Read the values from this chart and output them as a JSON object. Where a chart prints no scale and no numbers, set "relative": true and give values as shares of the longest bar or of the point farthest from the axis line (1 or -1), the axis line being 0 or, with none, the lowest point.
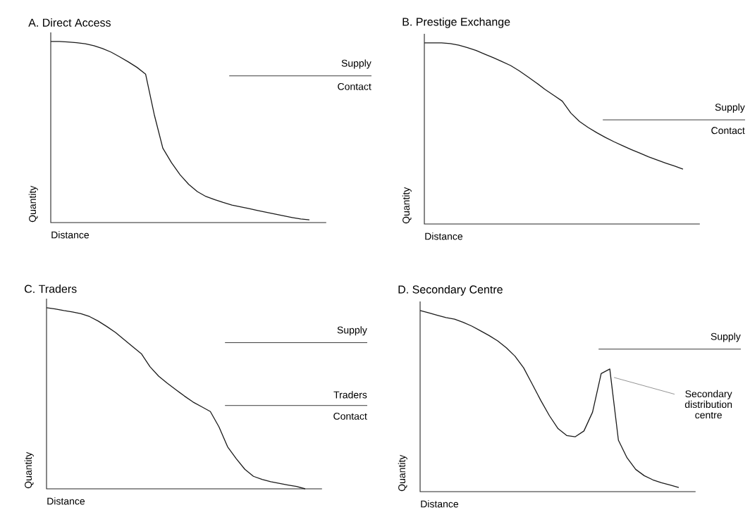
{
  "chart_data": [
    {
      "type": "line",
      "relative": true,
      "title": "A. Direct Access",
      "xlabel": "Distance",
      "ylabel": "Quantity",
      "color": "#1a1a1a",
      "categories": [
        null,
        null,
        null,
        null,
        null,
        null,
        null,
        null,
        null,
        null,
        null,
        null,
        null,
        null,
        null,
        null,
        null,
        null,
        null,
        null,
        null,
        null,
        null,
        null,
        null,
        null,
        null,
        null,
        null,
        null,
        null
      ],
      "values": [
        1.0,
        1.0,
        0.997,
        0.993,
        0.987,
        0.977,
        0.961,
        0.941,
        0.915,
        0.887,
        0.857,
        0.82,
        0.597,
        0.411,
        0.331,
        0.264,
        0.211,
        0.171,
        0.144,
        0.127,
        0.111,
        0.097,
        0.087,
        0.077,
        0.067,
        0.057,
        0.047,
        0.037,
        0.028,
        0.02,
        0.015
      ],
      "ref_lines": [
        {
          "axis": "y",
          "value": 0.81,
          "label": "Supply"
        }
      ],
      "annotations": [
        "Contact"
      ]
    },
    {
      "type": "line",
      "relative": true,
      "title": "B. Prestige Exchange",
      "xlabel": "Distance",
      "ylabel": "Quantity",
      "color": "#1a1a1a",
      "categories": [
        null,
        null,
        null,
        null,
        null,
        null,
        null,
        null,
        null,
        null,
        null,
        null,
        null,
        null,
        null,
        null,
        null,
        null,
        null,
        null,
        null,
        null,
        null,
        null,
        null,
        null,
        null,
        null,
        null,
        null,
        null
      ],
      "values": [
        1.0,
        1.0,
        1.0,
        0.996,
        0.987,
        0.974,
        0.958,
        0.938,
        0.918,
        0.897,
        0.875,
        0.846,
        0.813,
        0.779,
        0.743,
        0.711,
        0.678,
        0.612,
        0.566,
        0.533,
        0.504,
        0.478,
        0.454,
        0.432,
        0.411,
        0.391,
        0.371,
        0.353,
        0.336,
        0.32,
        0.303
      ],
      "ref_lines": [
        {
          "axis": "y",
          "value": 0.575,
          "label": "Supply"
        }
      ],
      "annotations": [
        "Contact"
      ]
    },
    {
      "type": "line",
      "relative": true,
      "title": "C. Traders",
      "xlabel": "Distance",
      "ylabel": "Quantity",
      "color": "#1a1a1a",
      "categories": [
        null,
        null,
        null,
        null,
        null,
        null,
        null,
        null,
        null,
        null,
        null,
        null,
        null,
        null,
        null,
        null,
        null,
        null,
        null,
        null,
        null,
        null,
        null,
        null,
        null,
        null,
        null,
        null,
        null,
        null,
        null
      ],
      "values": [
        1.0,
        0.993,
        0.984,
        0.977,
        0.967,
        0.951,
        0.926,
        0.896,
        0.863,
        0.824,
        0.785,
        0.746,
        0.674,
        0.622,
        0.583,
        0.547,
        0.512,
        0.479,
        0.453,
        0.427,
        0.342,
        0.232,
        0.167,
        0.108,
        0.069,
        0.052,
        0.039,
        0.03,
        0.021,
        0.013,
        0.0
      ],
      "ref_lines": [
        {
          "axis": "y",
          "value": 0.807,
          "label": "Supply"
        },
        {
          "axis": "y",
          "value": 0.46,
          "label": "Traders"
        }
      ],
      "annotations": [
        "Contact"
      ]
    },
    {
      "type": "line",
      "relative": true,
      "title": "D. Secondary Centre",
      "xlabel": "Distance",
      "ylabel": "Quantity",
      "color": "#1a1a1a",
      "categories": [
        null,
        null,
        null,
        null,
        null,
        null,
        null,
        null,
        null,
        null,
        null,
        null,
        null,
        null,
        null,
        null,
        null,
        null,
        null,
        null,
        null,
        null,
        null,
        null,
        null,
        null,
        null,
        null,
        null,
        null,
        null
      ],
      "values": [
        1.0,
        0.987,
        0.974,
        0.961,
        0.952,
        0.935,
        0.914,
        0.888,
        0.862,
        0.832,
        0.794,
        0.748,
        0.684,
        0.594,
        0.503,
        0.419,
        0.348,
        0.31,
        0.303,
        0.335,
        0.439,
        0.652,
        0.677,
        0.284,
        0.187,
        0.123,
        0.088,
        0.065,
        0.049,
        0.036,
        0.023
      ],
      "ref_lines": [
        {
          "axis": "y",
          "value": 0.787,
          "label": "Supply"
        }
      ],
      "annotations": [
        "Secondary distribution centre"
      ]
    }
  ]
}
